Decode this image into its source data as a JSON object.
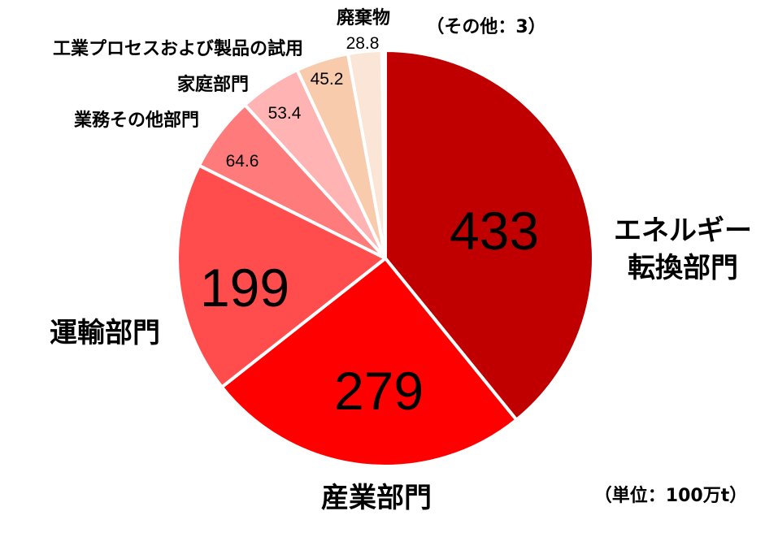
{
  "chart_data": {
    "type": "pie",
    "categories": [
      "エネルギー転換部門",
      "産業部門",
      "運輸部門",
      "業務その他部門",
      "家庭部門",
      "工業プロセスおよび製品の試用",
      "廃棄物",
      ""
    ],
    "values": [
      433,
      279,
      199,
      64.6,
      53.4,
      45.2,
      28.8,
      3
    ],
    "value_labels": [
      "433",
      "279",
      "199",
      "64.6",
      "53.4",
      "45.2",
      "28.8",
      ""
    ],
    "colors": [
      "#c00000",
      "#ff0000",
      "#ff4d4d",
      "#ff7a7a",
      "#ffb3b3",
      "#f8cbad",
      "#fbe5d6",
      "#ffffff"
    ],
    "notes": {
      "other": "（その他：3）",
      "unit": "（単位：100万t）"
    }
  },
  "labels": {
    "energy_line1": "エネルギー",
    "energy_line2": "転換部門",
    "industry": "産業部門",
    "transport": "運輸部門",
    "business": "業務その他部門",
    "household": "家庭部門",
    "industrial_process": "工業プロセスおよび製品の試用",
    "waste": "廃棄物"
  }
}
